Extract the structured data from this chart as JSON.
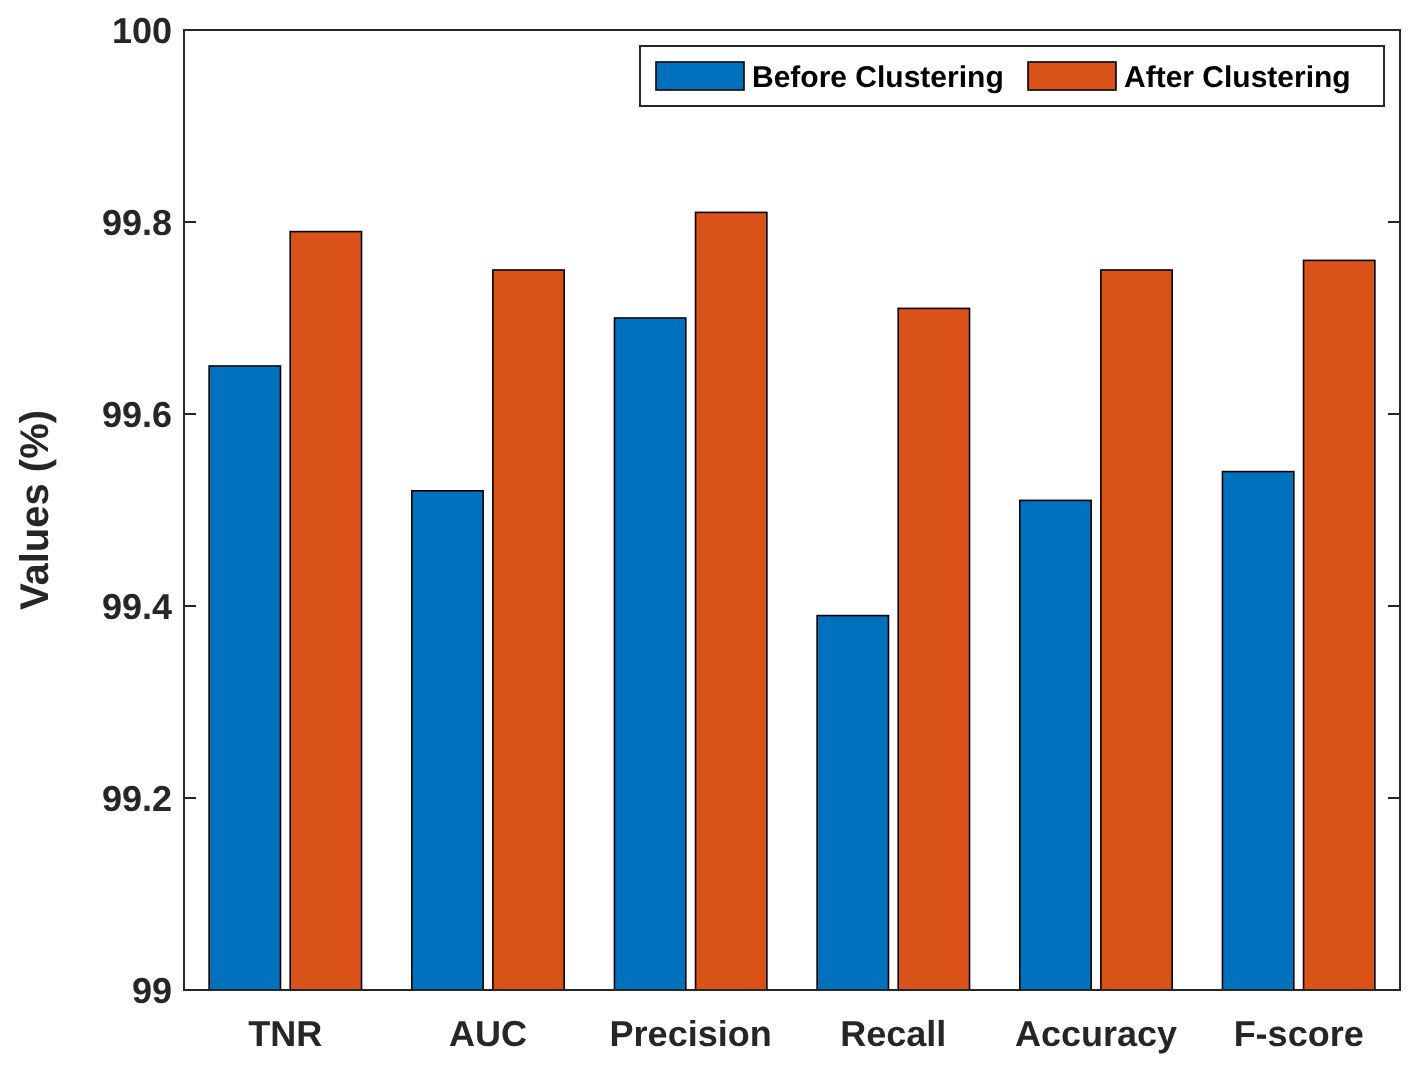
{
  "chart_data": {
    "type": "bar",
    "ylabel": "Values (%)",
    "categories": [
      "TNR",
      "AUC",
      "Precision",
      "Recall",
      "Accuracy",
      "F-score"
    ],
    "series": [
      {
        "name": "Before Clustering",
        "color": "#0072bd",
        "values": [
          99.65,
          99.52,
          99.7,
          99.39,
          99.51,
          99.54
        ]
      },
      {
        "name": "After Clustering",
        "color": "#d95319",
        "values": [
          99.79,
          99.75,
          99.81,
          99.71,
          99.75,
          99.76
        ]
      }
    ],
    "ylim": [
      99,
      100
    ],
    "yticks": [
      99,
      99.2,
      99.4,
      99.6,
      99.8,
      100
    ],
    "grid": false,
    "legend": "top right"
  }
}
